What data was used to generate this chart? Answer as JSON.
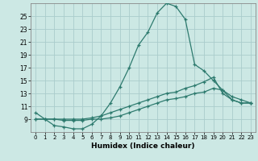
{
  "xlabel": "Humidex (Indice chaleur)",
  "background_color": "#cce8e4",
  "grid_color": "#aacccc",
  "line_color": "#2d7a6e",
  "xlim": [
    -0.5,
    23.5
  ],
  "ylim": [
    7,
    27
  ],
  "xticks": [
    0,
    1,
    2,
    3,
    4,
    5,
    6,
    7,
    8,
    9,
    10,
    11,
    12,
    13,
    14,
    15,
    16,
    17,
    18,
    19,
    20,
    21,
    22,
    23
  ],
  "yticks": [
    9,
    11,
    13,
    15,
    17,
    19,
    21,
    23,
    25
  ],
  "line1_x": [
    0,
    1,
    2,
    3,
    4,
    5,
    6,
    7,
    8,
    9,
    10,
    11,
    12,
    13,
    14,
    15,
    16,
    17,
    18,
    19,
    20,
    21,
    22,
    23
  ],
  "line1_y": [
    10,
    9,
    8,
    7.8,
    7.5,
    7.5,
    8.2,
    9.5,
    11.5,
    14,
    17,
    20.5,
    22.5,
    25.5,
    27,
    26.5,
    24.5,
    17.5,
    16.5,
    15,
    13.5,
    12,
    11.5,
    11.5
  ],
  "line2_x": [
    0,
    1,
    2,
    3,
    4,
    5,
    6,
    7,
    8,
    9,
    10,
    11,
    12,
    13,
    14,
    15,
    16,
    17,
    18,
    19,
    20,
    21,
    22,
    23
  ],
  "line2_y": [
    9,
    9,
    9,
    9,
    9,
    9,
    9.2,
    9.5,
    10,
    10.5,
    11,
    11.5,
    12,
    12.5,
    13,
    13.2,
    13.8,
    14.2,
    14.8,
    15.5,
    13,
    12,
    11.5,
    11.5
  ],
  "line3_x": [
    0,
    1,
    2,
    3,
    4,
    5,
    6,
    7,
    8,
    9,
    10,
    11,
    12,
    13,
    14,
    15,
    16,
    17,
    18,
    19,
    20,
    21,
    22,
    23
  ],
  "line3_y": [
    9,
    9,
    9,
    8.8,
    8.8,
    8.8,
    9,
    9,
    9.2,
    9.5,
    10,
    10.5,
    11,
    11.5,
    12,
    12.2,
    12.5,
    13,
    13.2,
    13.8,
    13.5,
    12.5,
    12,
    11.5
  ]
}
